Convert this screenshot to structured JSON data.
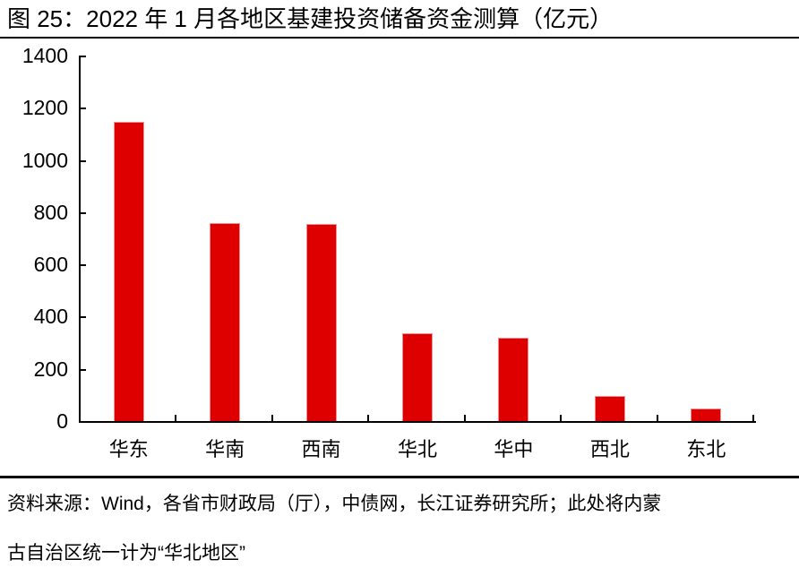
{
  "figure": {
    "title": "图 25：2022 年 1 月各地区基建投资储备资金测算（亿元）",
    "source_note": {
      "lines": [
        "资料来源：Wind，各省市财政局（厅），中债网，长江证券研究所；此处将内蒙",
        "古自治区统一计为“华北地区”"
      ]
    }
  },
  "colors": {
    "bar": "#DE0000",
    "axis": "#000000",
    "text": "#000000"
  },
  "chart_data": {
    "type": "bar",
    "title": "2022年1月各地区基建投资储备资金测算（亿元）",
    "categories": [
      "华东",
      "华南",
      "西南",
      "华北",
      "华中",
      "西北",
      "东北"
    ],
    "values": [
      1145,
      760,
      755,
      335,
      320,
      95,
      48
    ],
    "xlabel": "",
    "ylabel": "",
    "ylim": [
      0,
      1400
    ],
    "ytick_step": 200,
    "grid": false,
    "legend": "none",
    "bar_color": "#DE0000"
  }
}
